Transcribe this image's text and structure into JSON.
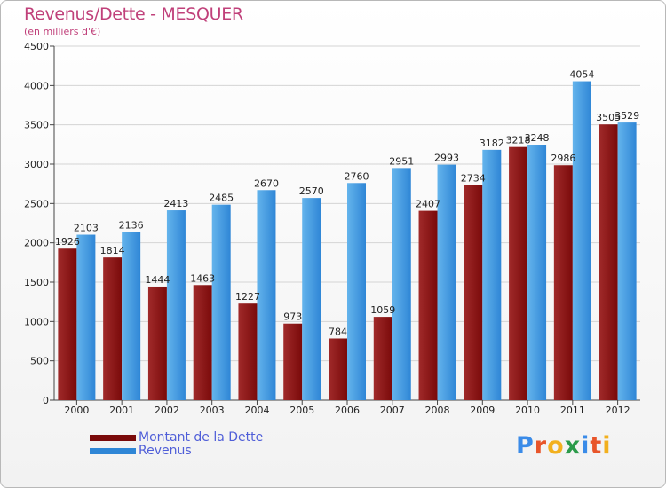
{
  "header": {
    "title": "Revenus/Dette - MESQUER",
    "subtitle": "(en milliers d'€)"
  },
  "legend": {
    "dette_label": "Montant de la Dette",
    "revenus_label": "Revenus"
  },
  "logo": {
    "text": "Proxiti",
    "colors": [
      "#3a8be8",
      "#e8552a",
      "#f2b01e",
      "#2b9b4a",
      "#3a8be8",
      "#e8552a",
      "#f2b01e"
    ]
  },
  "colors": {
    "dette": "#7a0a0a",
    "dette_light": "#a02a2a",
    "revenus": "#2f86d6",
    "revenus_light": "#64b4ec",
    "legend_text": "#4f5ed8",
    "title": "#c0407a"
  },
  "chart_data": {
    "type": "bar",
    "title": "Revenus/Dette - MESQUER",
    "subtitle": "(en milliers d'€)",
    "xlabel": "",
    "ylabel": "",
    "ylim": [
      0,
      4500
    ],
    "yticks": [
      0,
      500,
      1000,
      1500,
      2000,
      2500,
      3000,
      3500,
      4000,
      4500
    ],
    "grid": true,
    "legend_position": "bottom-left",
    "categories": [
      "2000",
      "2001",
      "2002",
      "2003",
      "2004",
      "2005",
      "2006",
      "2007",
      "2008",
      "2009",
      "2010",
      "2011",
      "2012"
    ],
    "series": [
      {
        "name": "Montant de la Dette",
        "values": [
          1926,
          1814,
          1444,
          1463,
          1227,
          973,
          784,
          1059,
          2407,
          2734,
          3218,
          2986,
          3505
        ]
      },
      {
        "name": "Revenus",
        "values": [
          2103,
          2136,
          2413,
          2485,
          2670,
          2570,
          2760,
          2951,
          2993,
          3182,
          3248,
          4054,
          3529
        ]
      }
    ]
  }
}
